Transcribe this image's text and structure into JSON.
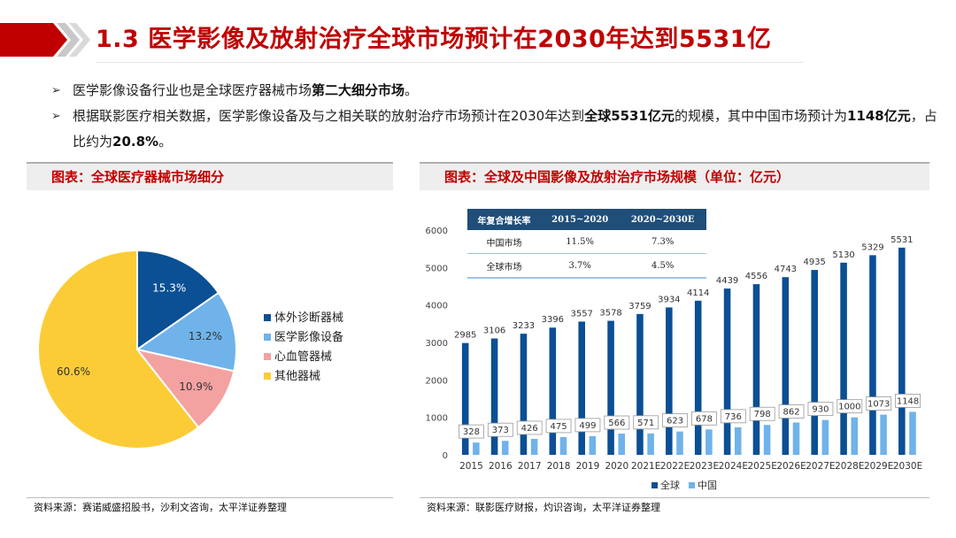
{
  "colors": {
    "accent_red": "#c00000",
    "dark_blue": "#0b4f94",
    "light_blue": "#6fb3ea",
    "pink": "#f4a1a1",
    "yellow": "#fccc37"
  },
  "slide": {
    "title": "1.3 医学影像及放射治疗全球市场预计在2030年达到5531亿",
    "bullet1": {
      "pre": "医学影像设备行业也是全球医疗器械市场",
      "bold": "第二大细分市场",
      "post": "。"
    },
    "bullet2": {
      "pre": "根据联影医疗相关数据，医学影像设备及与之相关联的放射治疗市场预计在2030年达到",
      "bold1": "全球5531亿元",
      "mid": "的规模，其中中国市场预计为",
      "bold2": "1148亿元",
      "mid2": "，占比约为",
      "bold3": "20.8%",
      "post": "。"
    }
  },
  "left_panel": {
    "header": "图表：全球医疗器械市场细分",
    "source": "资料来源：赛诺威盛招股书，沙利文咨询，太平洋证券整理"
  },
  "right_panel": {
    "header": "图表：全球及中国影像及放射治疗市场规模（单位：亿元）",
    "source": "资料来源：联影医疗财报，灼识咨询，太平洋证券整理",
    "table": {
      "headers": [
        "年复合增长率",
        "2015~2020",
        "2020~2030E"
      ],
      "rows": [
        [
          "中国市场",
          "11.5%",
          "7.3%"
        ],
        [
          "全球市场",
          "3.7%",
          "4.5%"
        ]
      ]
    }
  },
  "chart_data": [
    {
      "type": "pie",
      "title": "全球医疗器械市场细分",
      "labels": [
        "体外诊断器械",
        "医学影像设备",
        "心血管器械",
        "其他器械"
      ],
      "values": [
        15.3,
        13.2,
        10.9,
        60.6
      ],
      "value_labels": [
        "15.3%",
        "13.2%",
        "10.9%",
        "60.6%"
      ],
      "colors": [
        "#0b4f94",
        "#6fb3ea",
        "#f4a1a1",
        "#fccc37"
      ],
      "legend_position": "right"
    },
    {
      "type": "bar",
      "title": "全球及中国影像及放射治疗市场规模（单位：亿元）",
      "categories": [
        "2015",
        "2016",
        "2017",
        "2018",
        "2019",
        "2020",
        "2021E",
        "2022E",
        "2023E",
        "2024E",
        "2025E",
        "2026E",
        "2027E",
        "2028E",
        "2029E",
        "2030E"
      ],
      "series": [
        {
          "name": "全球",
          "color": "#0b4f94",
          "values": [
            2985,
            3106,
            3233,
            3396,
            3557,
            3578,
            3759,
            3934,
            4114,
            4439,
            4556,
            4743,
            4935,
            5130,
            5329,
            5531
          ]
        },
        {
          "name": "中国",
          "color": "#6fb3ea",
          "values": [
            328,
            373,
            426,
            475,
            499,
            566,
            571,
            623,
            678,
            736,
            798,
            862,
            930,
            1000,
            1073,
            1148
          ]
        }
      ],
      "ylim": [
        0,
        6000
      ],
      "yticks": [
        0,
        1000,
        2000,
        3000,
        4000,
        5000,
        6000
      ],
      "legend_position": "bottom"
    }
  ]
}
